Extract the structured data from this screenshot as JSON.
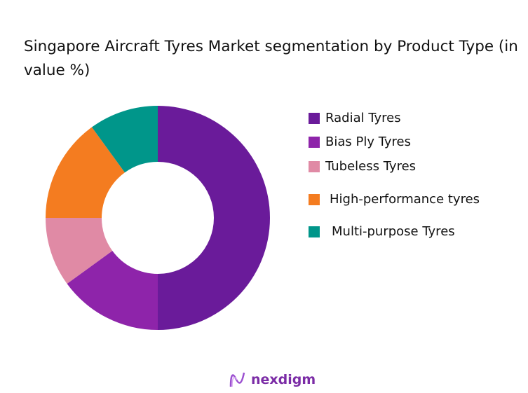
{
  "chart_data": {
    "type": "pie",
    "title": "Singapore Aircraft Tyres Market segmentation by Product Type (in value %)",
    "donut": true,
    "legend_position": "right",
    "categories": [
      "Radial Tyres",
      "Bias Ply Tyres",
      "Tubeless Tyres",
      "High-performance tyres",
      "Multi-purpose Tyres"
    ],
    "values": [
      50,
      15,
      10,
      15,
      10
    ],
    "colors": [
      "#6a1b9a",
      "#8e24aa",
      "#e08aa5",
      "#f47c20",
      "#00968a"
    ]
  },
  "logo": {
    "text": "nexdigm"
  }
}
